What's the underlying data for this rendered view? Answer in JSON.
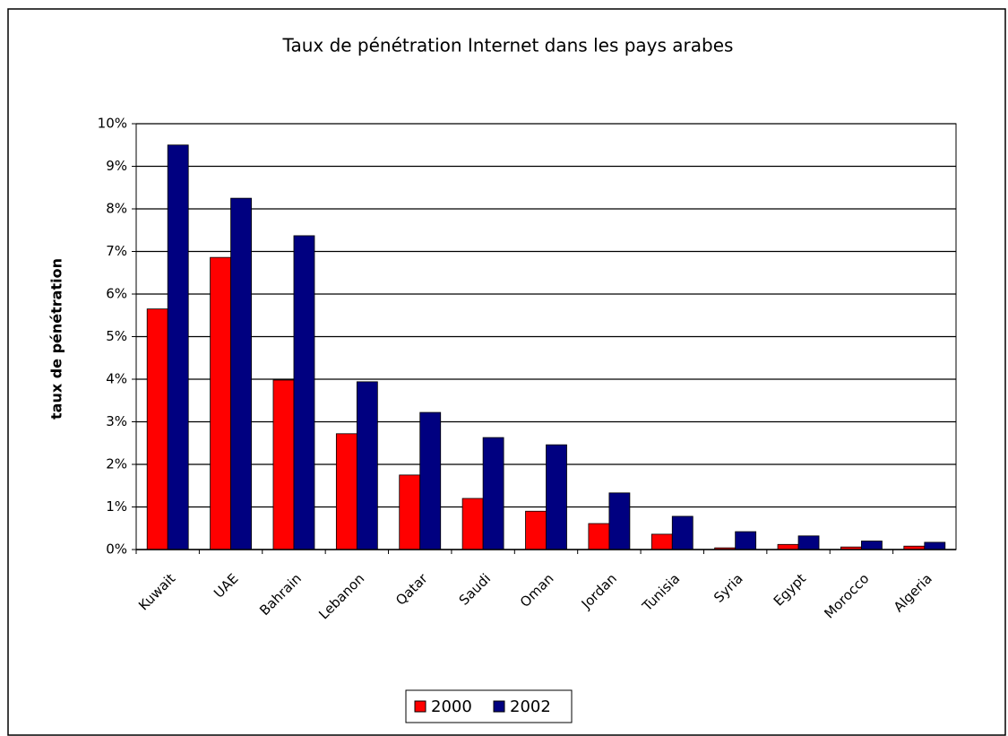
{
  "chart_data": {
    "type": "bar",
    "title": "Taux de pénétration Internet dans les pays arabes",
    "y_label": "taux de pénétration",
    "categories": [
      "Kuwait",
      "UAE",
      "Bahrain",
      "Lebanon",
      "Qatar",
      "Saudi",
      "Oman",
      "Jordan",
      "Tunisia",
      "Syria",
      "Egypt",
      "Morocco",
      "Algeria"
    ],
    "series": [
      {
        "name": "2000",
        "color": "#ff0000",
        "values": [
          5.65,
          6.86,
          3.98,
          2.72,
          1.75,
          1.2,
          0.9,
          0.61,
          0.36,
          0.04,
          0.12,
          0.06,
          0.08
        ]
      },
      {
        "name": "2002",
        "color": "#000080",
        "values": [
          9.5,
          8.25,
          7.37,
          3.94,
          3.22,
          2.63,
          2.46,
          1.33,
          0.78,
          0.42,
          0.32,
          0.2,
          0.17
        ]
      }
    ],
    "ylim": [
      0,
      10
    ],
    "yticks": [
      {
        "value": 0,
        "label": "0%"
      },
      {
        "value": 1,
        "label": "1%"
      },
      {
        "value": 2,
        "label": "2%"
      },
      {
        "value": 3,
        "label": "3%"
      },
      {
        "value": 4,
        "label": "4%"
      },
      {
        "value": 5,
        "label": "5%"
      },
      {
        "value": 6,
        "label": "6%"
      },
      {
        "value": 7,
        "label": "7%"
      },
      {
        "value": 8,
        "label": "8%"
      },
      {
        "value": 9,
        "label": "9%"
      },
      {
        "value": 10,
        "label": "10%"
      }
    ],
    "grid": true,
    "legend": "bottom"
  }
}
